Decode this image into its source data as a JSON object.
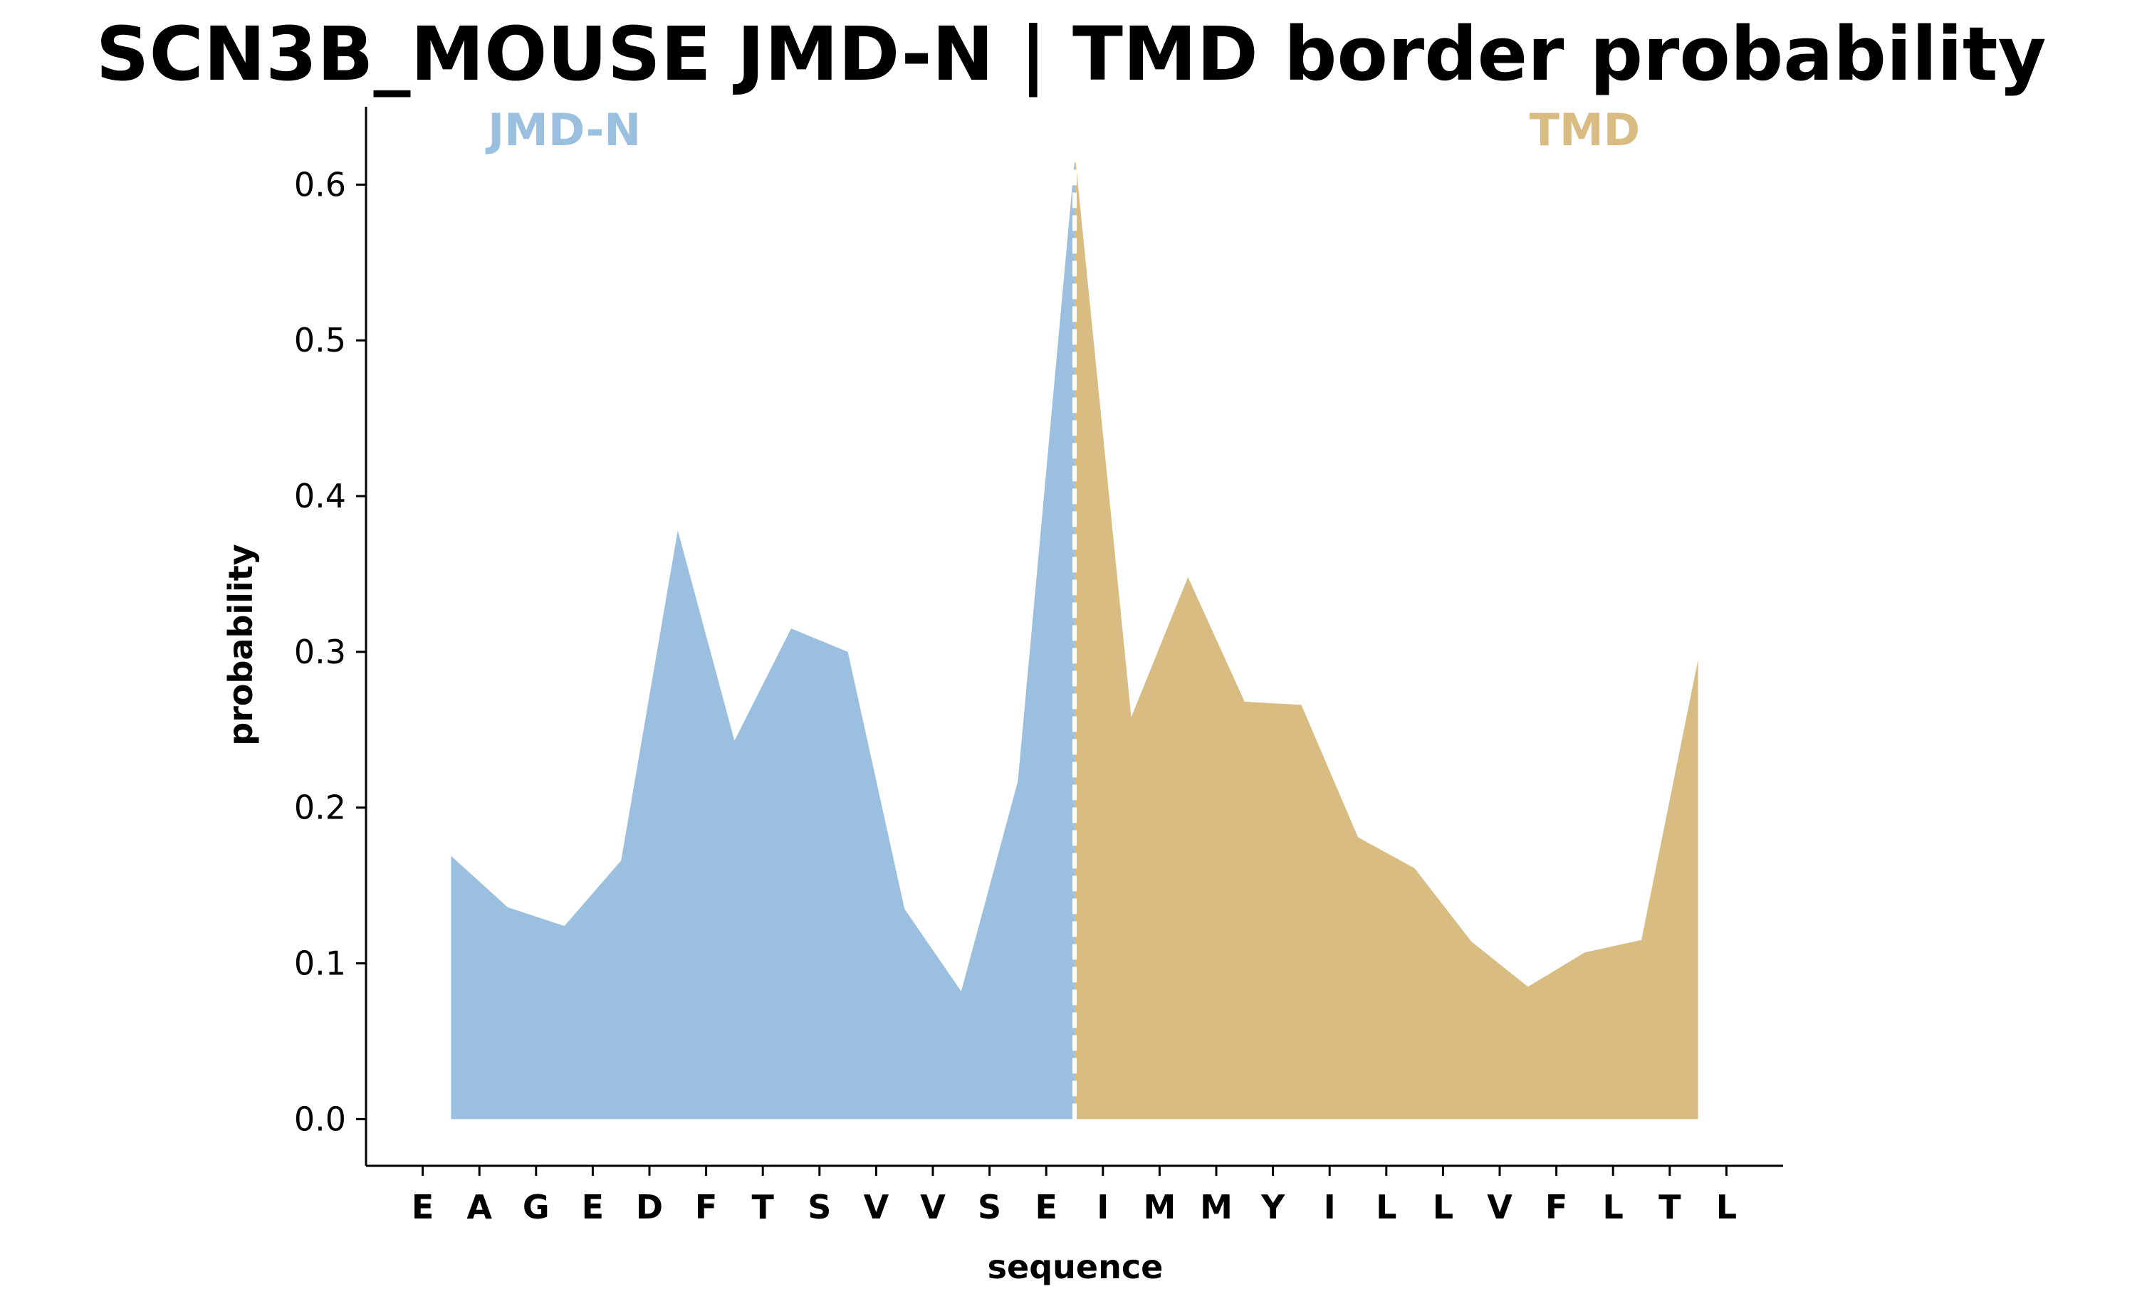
{
  "chart_data": {
    "type": "area",
    "title": "SCN3B_MOUSE JMD-N | TMD border probability",
    "xlabel": "sequence",
    "ylabel": "probability",
    "ylim": [
      -0.03,
      0.65
    ],
    "yticks": [
      0.0,
      0.1,
      0.2,
      0.3,
      0.4,
      0.5,
      0.6
    ],
    "ytick_labels": [
      "0.0",
      "0.1",
      "0.2",
      "0.3",
      "0.4",
      "0.5",
      "0.6"
    ],
    "categories": [
      "E",
      "A",
      "G",
      "E",
      "D",
      "F",
      "T",
      "S",
      "V",
      "V",
      "S",
      "E",
      "I",
      "M",
      "M",
      "Y",
      "I",
      "L",
      "L",
      "V",
      "F",
      "L",
      "T",
      "L"
    ],
    "grid": false,
    "colors": {
      "jmd_n": "#9bc0df",
      "tmd": "#d9bc82",
      "border_line": "#ffffff",
      "axis": "#000000"
    },
    "series": [
      {
        "name": "JMD-N",
        "x": [
          0.5,
          1.5,
          2.5,
          3.5,
          4.5,
          5.5,
          6.5,
          7.5,
          8.5,
          9.5,
          10.5,
          11.5
        ],
        "values": [
          0.169,
          0.136,
          0.124,
          0.166,
          0.378,
          0.243,
          0.315,
          0.3,
          0.135,
          0.082,
          0.217,
          0.615
        ]
      },
      {
        "name": "TMD",
        "x": [
          11.5,
          12.5,
          13.5,
          14.5,
          15.5,
          16.5,
          17.5,
          18.5,
          19.5,
          20.5,
          21.5,
          22.5
        ],
        "values": [
          0.622,
          0.258,
          0.348,
          0.268,
          0.266,
          0.181,
          0.161,
          0.114,
          0.085,
          0.107,
          0.115,
          0.295
        ]
      }
    ],
    "border_x": 11.5,
    "region_labels": [
      {
        "text": "JMD-N",
        "at": 2.5
      },
      {
        "text": "TMD",
        "at": 20.5
      }
    ]
  }
}
